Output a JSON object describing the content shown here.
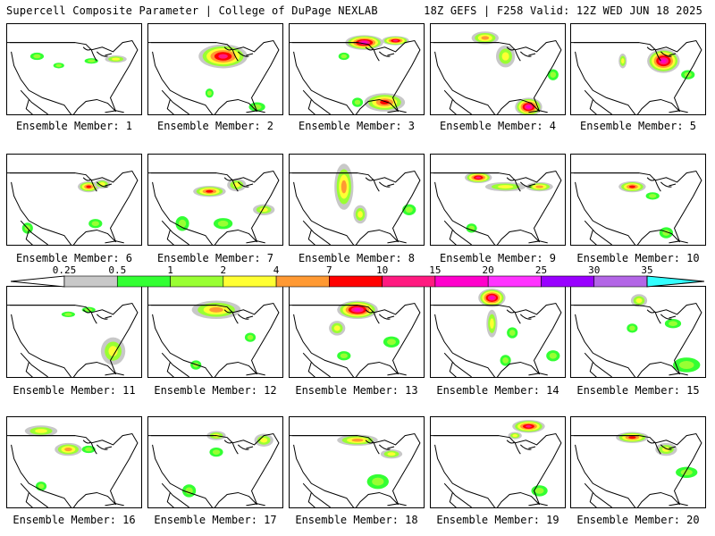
{
  "header": {
    "title_left": "Supercell Composite Parameter | College of DuPage NEXLAB",
    "title_right": "18Z GEFS | F258 Valid: 12Z WED JUN 18 2025"
  },
  "panel_label_prefix": "Ensemble Member: ",
  "panels": [
    {
      "label": "Ensemble Member: 1",
      "blobs": [
        [
          0.22,
          0.35,
          0.05,
          0.04,
          1
        ],
        [
          0.38,
          0.45,
          0.04,
          0.03,
          1
        ],
        [
          0.62,
          0.4,
          0.05,
          0.03,
          1
        ],
        [
          0.8,
          0.38,
          0.08,
          0.04,
          2
        ]
      ]
    },
    {
      "label": "Ensemble Member: 2",
      "blobs": [
        [
          0.55,
          0.35,
          0.18,
          0.13,
          5
        ],
        [
          0.45,
          0.75,
          0.03,
          0.05,
          1
        ],
        [
          0.8,
          0.9,
          0.06,
          0.05,
          1
        ]
      ]
    },
    {
      "label": "Ensemble Member: 3",
      "blobs": [
        [
          0.55,
          0.2,
          0.14,
          0.08,
          6
        ],
        [
          0.78,
          0.18,
          0.1,
          0.05,
          5
        ],
        [
          0.7,
          0.85,
          0.15,
          0.1,
          4
        ],
        [
          0.5,
          0.85,
          0.04,
          0.05,
          1
        ],
        [
          0.4,
          0.35,
          0.04,
          0.04,
          1
        ]
      ]
    },
    {
      "label": "Ensemble Member: 4",
      "blobs": [
        [
          0.4,
          0.15,
          0.1,
          0.07,
          3
        ],
        [
          0.55,
          0.35,
          0.07,
          0.12,
          2
        ],
        [
          0.72,
          0.9,
          0.1,
          0.1,
          6
        ],
        [
          0.9,
          0.55,
          0.04,
          0.06,
          1
        ]
      ]
    },
    {
      "label": "Ensemble Member: 5",
      "blobs": [
        [
          0.68,
          0.4,
          0.12,
          0.13,
          6
        ],
        [
          0.38,
          0.4,
          0.03,
          0.08,
          2
        ],
        [
          0.86,
          0.55,
          0.05,
          0.05,
          1
        ]
      ]
    },
    {
      "label": "Ensemble Member: 6",
      "blobs": [
        [
          0.6,
          0.35,
          0.08,
          0.06,
          4
        ],
        [
          0.7,
          0.32,
          0.06,
          0.05,
          2
        ],
        [
          0.15,
          0.8,
          0.04,
          0.06,
          1
        ],
        [
          0.65,
          0.75,
          0.05,
          0.05,
          1
        ]
      ]
    },
    {
      "label": "Ensemble Member: 7",
      "blobs": [
        [
          0.45,
          0.4,
          0.12,
          0.06,
          4
        ],
        [
          0.65,
          0.33,
          0.07,
          0.07,
          2
        ],
        [
          0.25,
          0.75,
          0.05,
          0.08,
          1
        ],
        [
          0.55,
          0.75,
          0.07,
          0.06,
          1
        ],
        [
          0.85,
          0.6,
          0.08,
          0.06,
          2
        ]
      ]
    },
    {
      "label": "Ensemble Member: 8",
      "blobs": [
        [
          0.4,
          0.35,
          0.07,
          0.25,
          3
        ],
        [
          0.52,
          0.65,
          0.05,
          0.1,
          2
        ],
        [
          0.88,
          0.6,
          0.05,
          0.06,
          1
        ]
      ]
    },
    {
      "label": "Ensemble Member: 9",
      "blobs": [
        [
          0.35,
          0.25,
          0.1,
          0.06,
          5
        ],
        [
          0.55,
          0.35,
          0.15,
          0.05,
          2
        ],
        [
          0.8,
          0.35,
          0.1,
          0.05,
          3
        ],
        [
          0.3,
          0.8,
          0.04,
          0.05,
          1
        ]
      ]
    },
    {
      "label": "Ensemble Member: 10",
      "blobs": [
        [
          0.45,
          0.35,
          0.1,
          0.06,
          4
        ],
        [
          0.6,
          0.45,
          0.05,
          0.04,
          1
        ],
        [
          0.7,
          0.85,
          0.05,
          0.06,
          1
        ]
      ]
    },
    {
      "label": "Ensemble Member: 11",
      "blobs": [
        [
          0.78,
          0.7,
          0.09,
          0.15,
          2
        ],
        [
          0.45,
          0.3,
          0.05,
          0.03,
          1
        ],
        [
          0.6,
          0.25,
          0.05,
          0.03,
          1
        ]
      ]
    },
    {
      "label": "Ensemble Member: 12",
      "blobs": [
        [
          0.5,
          0.25,
          0.18,
          0.1,
          3
        ],
        [
          0.35,
          0.85,
          0.04,
          0.05,
          1
        ],
        [
          0.75,
          0.55,
          0.04,
          0.05,
          1
        ]
      ]
    },
    {
      "label": "Ensemble Member: 13",
      "blobs": [
        [
          0.5,
          0.25,
          0.15,
          0.1,
          6
        ],
        [
          0.35,
          0.45,
          0.06,
          0.08,
          2
        ],
        [
          0.4,
          0.75,
          0.05,
          0.05,
          1
        ],
        [
          0.75,
          0.6,
          0.06,
          0.06,
          1
        ]
      ]
    },
    {
      "label": "Ensemble Member: 14",
      "blobs": [
        [
          0.45,
          0.12,
          0.1,
          0.1,
          6
        ],
        [
          0.45,
          0.4,
          0.04,
          0.15,
          2
        ],
        [
          0.6,
          0.5,
          0.04,
          0.06,
          1
        ],
        [
          0.55,
          0.8,
          0.04,
          0.06,
          1
        ],
        [
          0.9,
          0.75,
          0.05,
          0.06,
          1
        ]
      ]
    },
    {
      "label": "Ensemble Member: 15",
      "blobs": [
        [
          0.5,
          0.15,
          0.06,
          0.07,
          2
        ],
        [
          0.45,
          0.45,
          0.04,
          0.05,
          1
        ],
        [
          0.75,
          0.4,
          0.06,
          0.05,
          1
        ],
        [
          0.85,
          0.85,
          0.1,
          0.08,
          1
        ]
      ]
    },
    {
      "label": "Ensemble Member: 16",
      "blobs": [
        [
          0.25,
          0.15,
          0.12,
          0.06,
          2
        ],
        [
          0.45,
          0.35,
          0.1,
          0.07,
          3
        ],
        [
          0.6,
          0.35,
          0.05,
          0.04,
          1
        ],
        [
          0.25,
          0.75,
          0.04,
          0.05,
          1
        ]
      ]
    },
    {
      "label": "Ensemble Member: 17",
      "blobs": [
        [
          0.5,
          0.2,
          0.07,
          0.05,
          2
        ],
        [
          0.5,
          0.38,
          0.05,
          0.05,
          1
        ],
        [
          0.85,
          0.25,
          0.07,
          0.07,
          2
        ],
        [
          0.3,
          0.8,
          0.05,
          0.07,
          1
        ]
      ]
    },
    {
      "label": "Ensemble Member: 18",
      "blobs": [
        [
          0.5,
          0.25,
          0.15,
          0.06,
          3
        ],
        [
          0.75,
          0.4,
          0.08,
          0.05,
          2
        ],
        [
          0.65,
          0.7,
          0.08,
          0.08,
          1
        ]
      ]
    },
    {
      "label": "Ensemble Member: 19",
      "blobs": [
        [
          0.72,
          0.1,
          0.12,
          0.07,
          5
        ],
        [
          0.62,
          0.2,
          0.05,
          0.04,
          2
        ],
        [
          0.8,
          0.8,
          0.06,
          0.06,
          1
        ]
      ]
    },
    {
      "label": "Ensemble Member: 20",
      "blobs": [
        [
          0.45,
          0.22,
          0.12,
          0.06,
          4
        ],
        [
          0.7,
          0.35,
          0.08,
          0.07,
          2
        ],
        [
          0.85,
          0.6,
          0.08,
          0.06,
          1
        ]
      ]
    }
  ],
  "colorbar": {
    "levels": [
      "0.25",
      "0.5",
      "1",
      "2",
      "4",
      "7",
      "10",
      "15",
      "20",
      "25",
      "30",
      "35"
    ],
    "colors": [
      "#c8c8c8",
      "#33ff33",
      "#99ff33",
      "#ffff33",
      "#ff9933",
      "#ff0000",
      "#ff1a80",
      "#ff00cc",
      "#ff33ff",
      "#9900ff",
      "#b366e6",
      "#33ffff"
    ]
  },
  "map_colors": {
    "land_outline": "#000000",
    "low": "#c8c8c8",
    "green": "#33ff33",
    "lightgreen": "#99ff33",
    "yellow": "#ffff33",
    "orange": "#ff9933",
    "red": "#ff0000"
  }
}
